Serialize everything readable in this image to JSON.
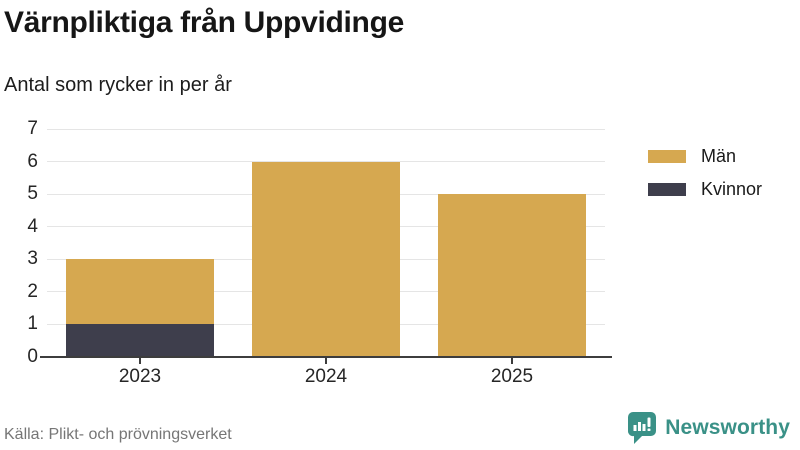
{
  "header": {
    "title": "Värnpliktiga från Uppvidinge",
    "subtitle": "Antal som rycker in per år"
  },
  "chart_data": {
    "type": "bar",
    "stacked": true,
    "title": "Värnpliktiga från Uppvidinge",
    "subtitle": "Antal som rycker in per år",
    "categories": [
      "2023",
      "2024",
      "2025"
    ],
    "series": [
      {
        "name": "Män",
        "color": "#D6A850",
        "values": [
          2,
          6,
          5
        ]
      },
      {
        "name": "Kvinnor",
        "color": "#3E3E4C",
        "values": [
          1,
          0,
          0
        ]
      }
    ],
    "stack_totals": [
      3,
      6,
      5
    ],
    "xlabel": "",
    "ylabel": "",
    "ylim": [
      0,
      7
    ],
    "yticks": [
      0,
      1,
      2,
      3,
      4,
      5,
      6,
      7
    ],
    "grid": true,
    "legend_position": "right-top",
    "gridline_color": "#E5E5E5",
    "axis_color": "#3D3D3D"
  },
  "footer": {
    "source": "Källa: Plikt- och prövningsverket",
    "brand": "Newsworthy",
    "brand_color": "#3A9187"
  }
}
